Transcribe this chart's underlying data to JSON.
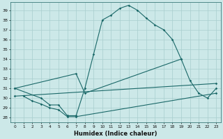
{
  "bg_color": "#cce8e8",
  "grid_color": "#a8cece",
  "line_color": "#1a6868",
  "xlabel": "Humidex (Indice chaleur)",
  "yticks": [
    28,
    29,
    30,
    31,
    32,
    33,
    34,
    35,
    36,
    37,
    38,
    39
  ],
  "xticks": [
    0,
    1,
    2,
    3,
    4,
    5,
    6,
    7,
    8,
    9,
    10,
    11,
    12,
    13,
    14,
    15,
    16,
    17,
    18,
    19,
    20,
    21,
    22,
    23
  ],
  "ylim": [
    27.5,
    39.8
  ],
  "xlim": [
    -0.5,
    23.5
  ],
  "curve1_x": [
    0,
    3,
    4,
    5,
    6,
    7,
    8,
    9,
    10,
    11,
    12,
    13,
    14,
    15,
    16,
    17,
    18,
    19
  ],
  "curve1_y": [
    31,
    30,
    29.3,
    29.3,
    28.2,
    28.2,
    31.0,
    34.5,
    38.0,
    38.5,
    39.2,
    39.5,
    39.0,
    38.2,
    37.5,
    37.0,
    36.0,
    34.0
  ],
  "curve2_x": [
    0,
    7,
    8,
    19,
    20,
    21,
    22,
    23
  ],
  "curve2_y": [
    31,
    32.5,
    30.5,
    34.0,
    31.8,
    30.5,
    30.0,
    31.0
  ],
  "curve3_x": [
    0,
    23
  ],
  "curve3_y": [
    30.2,
    31.5
  ],
  "curve4_x": [
    1,
    2,
    3,
    4,
    5,
    6,
    7,
    23
  ],
  "curve4_y": [
    30.2,
    29.7,
    29.4,
    29.0,
    28.8,
    28.1,
    28.1,
    30.5
  ]
}
